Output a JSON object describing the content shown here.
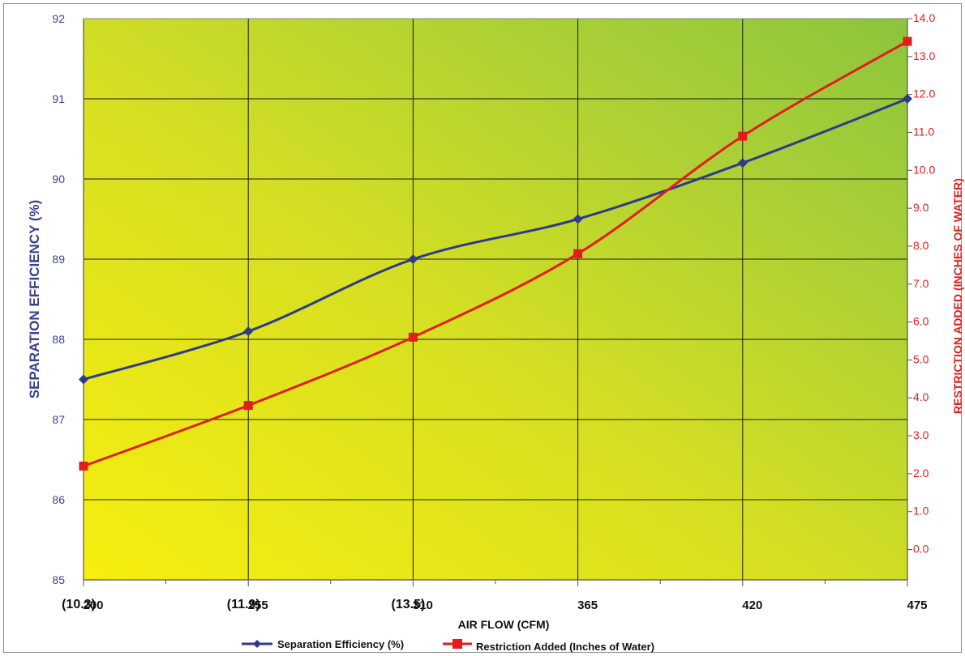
{
  "chart_data": {
    "type": "line",
    "title": "",
    "xlabel": "AIR FLOW (CFM)",
    "ylabel_left": "SEPARATION EFFICIENCY  (%)",
    "ylabel_right": "RESTRICTION ADDED (INCHES OF WATER)",
    "x": [
      200,
      255,
      310,
      365,
      420,
      475
    ],
    "x_tick_labels": [
      "200",
      "255",
      "310",
      "365",
      "420",
      "475"
    ],
    "x_annotations": [
      "(10.3)",
      "(11.9)",
      "(13.5)"
    ],
    "y_left_lim": [
      85,
      92
    ],
    "y_left_ticks": [
      "85",
      "86",
      "87",
      "88",
      "89",
      "90",
      "91",
      "92"
    ],
    "y_right_lim": [
      -0.8,
      14.0
    ],
    "y_right_ticks": [
      "0.0",
      "1.0",
      "2.0",
      "3.0",
      "4.0",
      "5.0",
      "6.0",
      "7.0",
      "8.0",
      "9.0",
      "10.0",
      "11.0",
      "12.0",
      "13.0",
      "14.0"
    ],
    "grid": true,
    "legend_position": "bottom",
    "series": [
      {
        "name": "Separation Efficiency (%)",
        "axis": "left",
        "color": "#2e3a8c",
        "marker": "diamond",
        "values": [
          87.5,
          88.1,
          89.0,
          89.5,
          90.2,
          91.0
        ]
      },
      {
        "name": "Restriction Added (Inches of Water)",
        "axis": "right",
        "color": "#e31c1c",
        "marker": "square",
        "values": [
          2.2,
          3.8,
          5.6,
          7.8,
          10.9,
          13.4
        ]
      }
    ],
    "colors": {
      "bg_light": "#f5ec10",
      "bg_dark": "#8cc43c",
      "left_axis": "#3a3f8f",
      "right_axis": "#e31c1c"
    }
  }
}
